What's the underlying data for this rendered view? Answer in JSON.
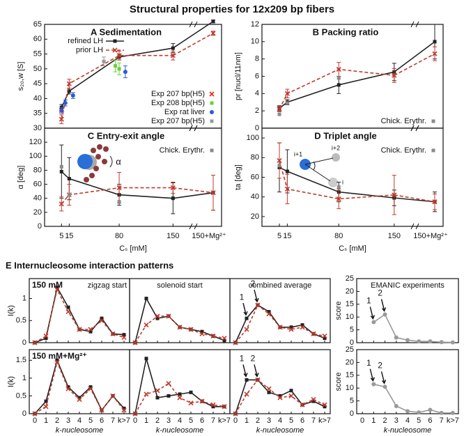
{
  "title": "Structural properties for 12x209 bp fibers",
  "panel_e_title": "E  Internucleosome interaction patterns",
  "chart_data": [
    {
      "type": "line",
      "title": "A  Sedimentation",
      "y_label": "s₂₀,w [S]",
      "ylim": [
        30,
        65
      ],
      "yticks": [
        30,
        35,
        40,
        45,
        50,
        55,
        60,
        65
      ],
      "xlim": [
        -17,
        166
      ],
      "legend": "lower right",
      "series": [
        {
          "name": "refined LH",
          "color": "#222222",
          "marker": "square",
          "dash": false,
          "x": [
            5,
            15,
            80,
            150
          ],
          "values": [
            37,
            42.5,
            54,
            57
          ],
          "errors": [
            1,
            1,
            1,
            1.5
          ],
          "mg_value": 66,
          "mg_error": 0.5
        },
        {
          "name": "prior LH",
          "color": "#c0392b",
          "marker": "x",
          "dash": true,
          "x": [
            5,
            15,
            80,
            150
          ],
          "values": [
            33,
            45,
            54.5,
            54.5
          ],
          "errors": [
            1.5,
            1.5,
            1.5,
            1.5
          ],
          "mg_value": 62,
          "mg_error": 0.7
        },
        {
          "type": "scatter",
          "name": "Exp 207 bp(H5)",
          "color": "#e8221b",
          "marker": "x",
          "x": [
            5
          ],
          "values": [
            36
          ]
        },
        {
          "type": "scatter",
          "name": "Exp 208 bp(H5)",
          "color": "#6ad23a",
          "marker": "square",
          "x": [
            75,
            80
          ],
          "values": [
            51,
            50
          ],
          "errors": [
            2,
            2
          ]
        },
        {
          "type": "scatter",
          "name": "Exp rat liver",
          "color": "#2a5bd7",
          "marker": "circle",
          "x": [
            5,
            10,
            20,
            88
          ],
          "values": [
            36,
            38.5,
            41,
            49
          ],
          "errors": [
            1,
            1,
            1,
            2
          ]
        },
        {
          "type": "scatter",
          "name": "Exp 207 bp(H5)",
          "color": "#999999",
          "marker": "square",
          "x": [
            60
          ],
          "values": [
            52.5
          ],
          "errors": [
            1.5
          ]
        }
      ]
    },
    {
      "type": "line",
      "title": "B  Packing ratio",
      "y_label": "pr [nucl/11nm]",
      "ylim": [
        0,
        12
      ],
      "yticks": [
        0,
        2,
        4,
        6,
        8,
        10,
        12
      ],
      "xlim": [
        -17,
        166
      ],
      "legend": "lower right",
      "series": [
        {
          "color": "#222222",
          "marker": "square",
          "dash": false,
          "x": [
            5,
            15,
            80,
            150
          ],
          "values": [
            2.3,
            3,
            5,
            6.5
          ],
          "errors": [
            0.3,
            0.3,
            1,
            1
          ],
          "mg_value": 10,
          "mg_error": 2
        },
        {
          "color": "#c0392b",
          "marker": "x",
          "dash": true,
          "x": [
            5,
            15,
            80,
            150
          ],
          "values": [
            2.2,
            4,
            6.8,
            6.1
          ],
          "errors": [
            0.3,
            0.5,
            0.8,
            0.8
          ],
          "mg_value": 8.6,
          "mg_error": 0.8
        },
        {
          "type": "scatter",
          "name": "Chick. Erythr.",
          "color": "#8a8a8a",
          "marker": "square",
          "x": [
            5,
            15,
            80
          ],
          "values": [
            1.6,
            2.9,
            5.8
          ]
        }
      ]
    },
    {
      "type": "line",
      "title": "C  Entry-exit angle",
      "y_label": "α [deg]",
      "ylim": [
        0,
        140
      ],
      "yticks": [
        0,
        20,
        40,
        60,
        80,
        100,
        120
      ],
      "xlim": [
        -17,
        166
      ],
      "legend": "upper right",
      "x_label": "Cₛ [mM]",
      "xticks": [
        5,
        15,
        80,
        150
      ],
      "x_break_label": "150+Mg²⁺",
      "diagram_labels": [
        "α"
      ],
      "series": [
        {
          "color": "#222222",
          "marker": "square",
          "dash": false,
          "x": [
            5,
            15,
            80,
            150
          ],
          "values": [
            78,
            68,
            45,
            40
          ],
          "errors": [
            38,
            30,
            15,
            22
          ],
          "mg_value": 48,
          "mg_error": 25
        },
        {
          "color": "#c0392b",
          "marker": "x",
          "dash": true,
          "x": [
            5,
            15,
            80,
            150
          ],
          "values": [
            32,
            45,
            55,
            55
          ],
          "errors": [
            10,
            15,
            22,
            8
          ],
          "mg_value": 48,
          "mg_error": 25
        },
        {
          "type": "scatter",
          "name": "Chick. Erythr.",
          "color": "#8a8a8a",
          "marker": "square",
          "x": [
            5,
            15,
            80
          ],
          "values": [
            85,
            45,
            35
          ]
        }
      ]
    },
    {
      "type": "line",
      "title": "D  Triplet angle",
      "y_label": "ta [deg]",
      "ylim": [
        10,
        110
      ],
      "yticks": [
        20,
        40,
        60,
        80,
        100
      ],
      "xlim": [
        -17,
        166
      ],
      "legend": "upper right",
      "x_label": "Cₛ [mM]",
      "xticks": [
        5,
        15,
        80,
        150
      ],
      "x_break_label": "150+Mg²⁺",
      "diagram_labels": [
        "i+1",
        "i+2",
        "i"
      ],
      "series": [
        {
          "color": "#222222",
          "marker": "square",
          "dash": false,
          "x": [
            5,
            15,
            80,
            150
          ],
          "values": [
            70,
            66,
            45,
            39
          ],
          "errors": [
            25,
            22,
            10,
            8
          ],
          "mg_value": 35,
          "mg_error": 10
        },
        {
          "color": "#c0392b",
          "marker": "x",
          "dash": true,
          "x": [
            5,
            15,
            80,
            150
          ],
          "values": [
            77,
            48,
            38,
            42
          ],
          "errors": [
            18,
            15,
            10,
            20
          ],
          "mg_value": 35,
          "mg_error": 8
        },
        {
          "type": "scatter",
          "name": "Chick. Erythr.",
          "color": "#8a8a8a",
          "marker": "square",
          "x": [
            5,
            80
          ],
          "values": [
            72,
            50
          ]
        }
      ]
    },
    {
      "type": "line",
      "row_label": "150 mM",
      "subtitle": "zigzag start",
      "y_label": "I(k)",
      "ylim": [
        0,
        1.45
      ],
      "yticks": [
        0,
        0.5,
        1
      ],
      "series": [
        {
          "color": "#222222",
          "marker": "square",
          "values": [
            0,
            0.1,
            1.25,
            0.8,
            0.3,
            0.25,
            0.55,
            0.2,
            0.18
          ]
        },
        {
          "color": "#c0392b",
          "marker": "x",
          "dash": true,
          "values": [
            0,
            0.15,
            1.2,
            0.7,
            0.3,
            0.3,
            0.5,
            0.2,
            0.12
          ]
        }
      ]
    },
    {
      "type": "line",
      "subtitle": "solenoid start",
      "ylim": [
        0,
        1.45
      ],
      "series": [
        {
          "color": "#222222",
          "marker": "square",
          "values": [
            0,
            1.0,
            0.55,
            0.6,
            0.35,
            0.3,
            0.25,
            0.15,
            0.05
          ]
        },
        {
          "color": "#c0392b",
          "marker": "x",
          "dash": true,
          "values": [
            0,
            0.4,
            0.6,
            0.6,
            0.35,
            0.3,
            0.2,
            0.15,
            0.1
          ]
        }
      ]
    },
    {
      "type": "line",
      "subtitle": "combined average",
      "ylim": [
        0,
        1.45
      ],
      "annotations": [
        "1",
        "2"
      ],
      "series": [
        {
          "color": "#222222",
          "marker": "square",
          "values": [
            0,
            0.55,
            0.85,
            0.7,
            0.35,
            0.35,
            0.4,
            0.2,
            0.1
          ]
        },
        {
          "color": "#c0392b",
          "marker": "x",
          "dash": true,
          "values": [
            0,
            0.3,
            0.85,
            0.65,
            0.35,
            0.3,
            0.35,
            0.2,
            0.15
          ]
        }
      ]
    },
    {
      "type": "line",
      "subtitle": "EMANIC experiments",
      "y_label": "score",
      "ylim": [
        0,
        25
      ],
      "yticks": [
        0,
        5,
        10,
        15,
        20,
        25
      ],
      "annotations": [
        "1",
        "2"
      ],
      "series": [
        {
          "color": "#999999",
          "marker": "circle",
          "values": [
            null,
            8,
            11,
            2,
            1,
            0.5,
            0.5,
            0.2,
            0.1
          ]
        }
      ]
    },
    {
      "type": "line",
      "row_label": "150 mM+Mg²⁺",
      "y_label": "I(k)",
      "ylim": [
        0,
        1.8
      ],
      "yticks": [
        0,
        0.5,
        1,
        1.5
      ],
      "categories": [
        "0",
        "1",
        "2",
        "3",
        "4",
        "5",
        "6",
        "7",
        "k>7"
      ],
      "x_label": "k-nucleosome",
      "series": [
        {
          "color": "#222222",
          "marker": "square",
          "values": [
            0,
            0.35,
            1.5,
            0.75,
            0.45,
            0.75,
            0.1,
            0.5,
            0.15
          ]
        },
        {
          "color": "#c0392b",
          "marker": "x",
          "dash": true,
          "values": [
            0,
            0.2,
            1.45,
            0.7,
            0.4,
            0.7,
            0.1,
            0.5,
            0.1
          ]
        }
      ]
    },
    {
      "type": "line",
      "ylim": [
        0,
        1.8
      ],
      "categories": [
        "0",
        "1",
        "2",
        "3",
        "4",
        "5",
        "6",
        "7",
        "k>7"
      ],
      "x_label": "k-nucleosome",
      "series": [
        {
          "color": "#222222",
          "marker": "square",
          "values": [
            0,
            1.55,
            0.45,
            0.5,
            0.55,
            0.6,
            0.35,
            0.2,
            0.2
          ]
        },
        {
          "color": "#c0392b",
          "marker": "x",
          "dash": true,
          "values": [
            0,
            0.55,
            0.65,
            0.85,
            0.45,
            0.3,
            0.35,
            0.25,
            0.2
          ]
        }
      ]
    },
    {
      "type": "line",
      "ylim": [
        0,
        1.8
      ],
      "annotations": [
        "1",
        "2"
      ],
      "categories": [
        "0",
        "1",
        "2",
        "3",
        "4",
        "5",
        "6",
        "7",
        "k>7"
      ],
      "x_label": "k-nucleosome",
      "series": [
        {
          "color": "#222222",
          "marker": "square",
          "values": [
            0,
            0.95,
            0.95,
            0.6,
            0.5,
            0.65,
            0.25,
            0.35,
            0.2
          ]
        },
        {
          "color": "#c0392b",
          "marker": "x",
          "dash": true,
          "values": [
            0,
            0.55,
            0.95,
            0.7,
            0.45,
            0.5,
            0.25,
            0.4,
            0.25
          ]
        }
      ]
    },
    {
      "type": "line",
      "y_label": "score",
      "ylim": [
        0,
        25
      ],
      "yticks": [
        0,
        5,
        10,
        15,
        20,
        25
      ],
      "annotations": [
        "1",
        "2"
      ],
      "categories": [
        "0",
        "1",
        "2",
        "3",
        "4",
        "5",
        "6",
        "7",
        "k>7"
      ],
      "x_label": "k-nucleosome",
      "series": [
        {
          "color": "#999999",
          "marker": "circle",
          "values": [
            null,
            11.5,
            10.5,
            3,
            1,
            0.5,
            1.5,
            0.3,
            0.3
          ]
        }
      ]
    }
  ]
}
